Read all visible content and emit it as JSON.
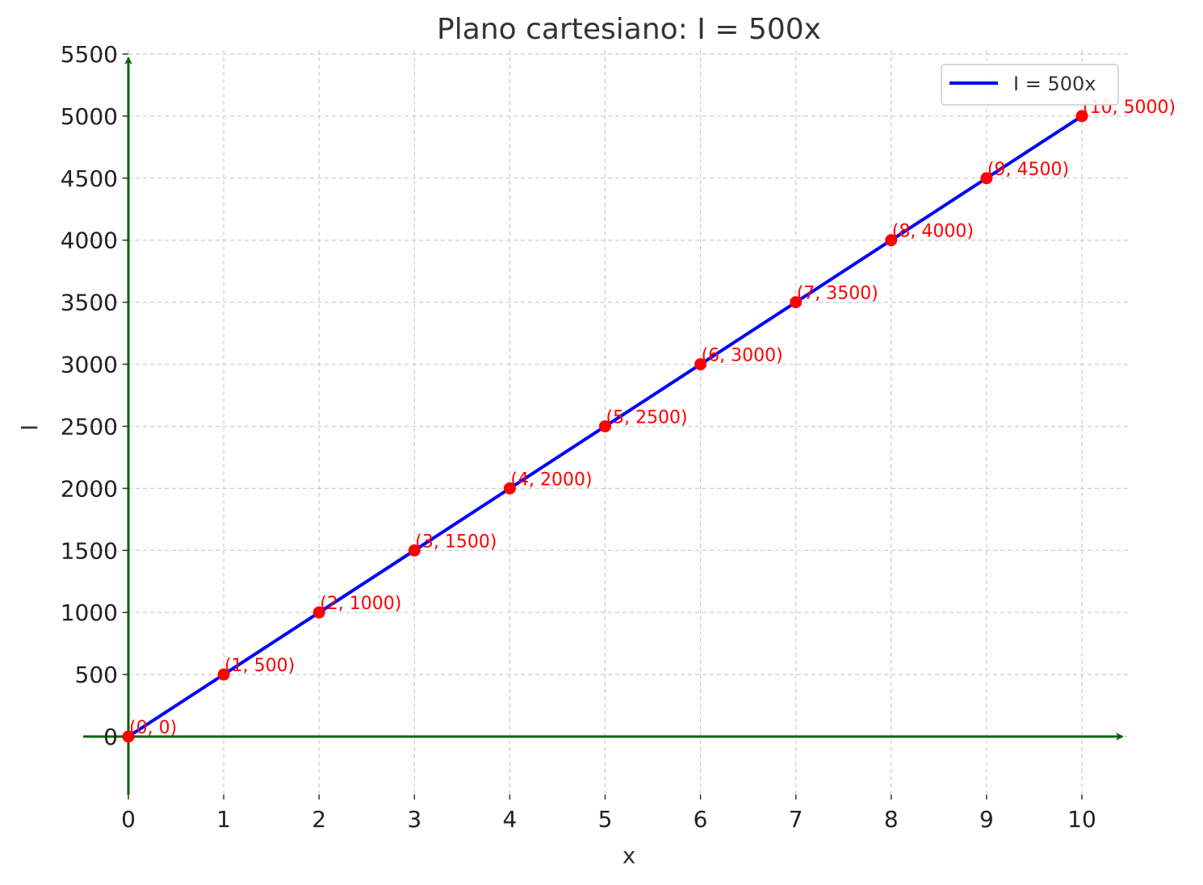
{
  "chart_data": {
    "type": "line",
    "title": "Plano cartesiano: I = 500x",
    "xlabel": "x",
    "ylabel": "I",
    "xlim": [
      0,
      10.5
    ],
    "ylim": [
      -470,
      5500
    ],
    "x_ticks": [
      0,
      1,
      2,
      3,
      4,
      5,
      6,
      7,
      8,
      9,
      10
    ],
    "y_ticks": [
      0,
      500,
      1000,
      1500,
      2000,
      2500,
      3000,
      3500,
      4000,
      4500,
      5000,
      5500
    ],
    "grid": true,
    "legend_position": "top-right",
    "series": [
      {
        "name": "I = 500x",
        "color": "#0000ff",
        "x": [
          0,
          1,
          2,
          3,
          4,
          5,
          6,
          7,
          8,
          9,
          10
        ],
        "y": [
          0,
          500,
          1000,
          1500,
          2000,
          2500,
          3000,
          3500,
          4000,
          4500,
          5000
        ]
      }
    ],
    "points": {
      "color": "#ff0000",
      "x": [
        0,
        1,
        2,
        3,
        4,
        5,
        6,
        7,
        8,
        9,
        10
      ],
      "y": [
        0,
        500,
        1000,
        1500,
        2000,
        2500,
        3000,
        3500,
        4000,
        4500,
        5000
      ],
      "labels": [
        "(0, 0)",
        "(1, 500)",
        "(2, 1000)",
        "(3, 1500)",
        "(4, 2000)",
        "(5, 2500)",
        "(6, 3000)",
        "(7, 3500)",
        "(8, 4000)",
        "(9, 4500)",
        "(10, 5000)"
      ]
    },
    "axes_color": "#006400"
  }
}
